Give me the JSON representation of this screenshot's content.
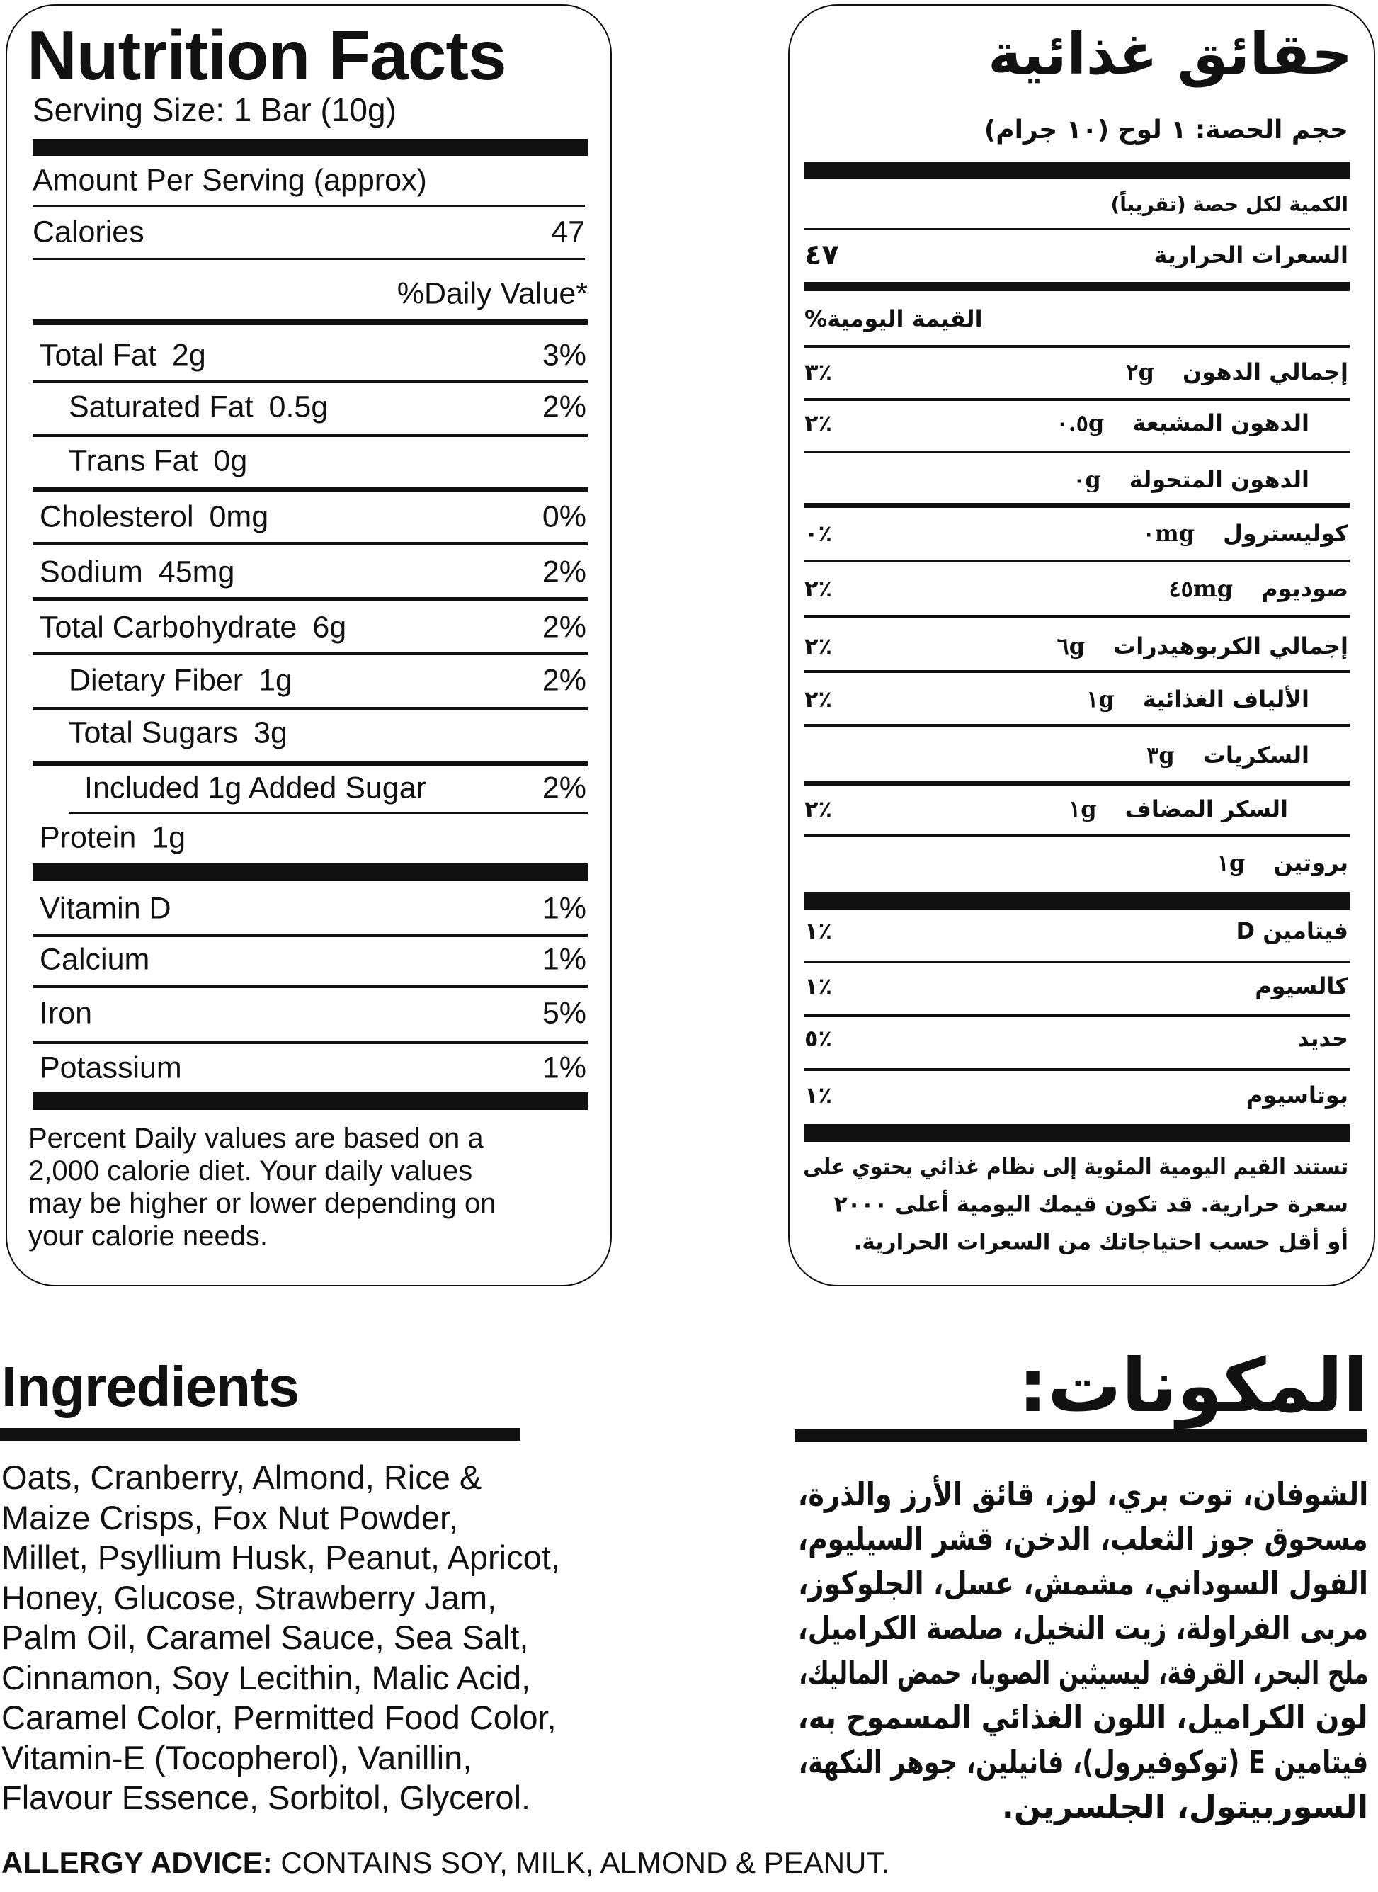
{
  "english_panel": {
    "title": "Nutrition Facts",
    "serving_size": "Serving Size: 1 Bar (10g)",
    "amount_per_serving": "Amount Per Serving (approx)",
    "calories_label": "Calories",
    "calories_value": "47",
    "daily_value_header": "%Daily Value*",
    "nutrients": [
      {
        "name": "Total Fat",
        "amount": "2g",
        "dv": "3%"
      },
      {
        "name": "Saturated Fat",
        "amount": "0.5g",
        "dv": "2%"
      },
      {
        "name": "Trans Fat",
        "amount": "0g",
        "dv": ""
      },
      {
        "name": "Cholesterol",
        "amount": "0mg",
        "dv": "0%"
      },
      {
        "name": "Sodium",
        "amount": "45mg",
        "dv": "2%"
      },
      {
        "name": "Total Carbohydrate",
        "amount": "6g",
        "dv": "2%"
      },
      {
        "name": "Dietary Fiber",
        "amount": "1g",
        "dv": "2%"
      },
      {
        "name": "Total Sugars",
        "amount": "3g",
        "dv": ""
      },
      {
        "name": "Included 1g Added Sugar",
        "amount": "",
        "dv": "2%"
      },
      {
        "name": "Protein",
        "amount": "1g",
        "dv": ""
      }
    ],
    "vitamins": [
      {
        "name": "Vitamin D",
        "dv": "1%"
      },
      {
        "name": "Calcium",
        "dv": "1%"
      },
      {
        "name": "Iron",
        "dv": "5%"
      },
      {
        "name": "Potassium",
        "dv": "1%"
      }
    ],
    "footnote": [
      "Percent Daily values are based on a",
      "2,000 calorie diet. Your daily values",
      "may be higher or lower depending on",
      "your calorie needs."
    ]
  },
  "arabic_panel": {
    "title": "حقائق غذائية",
    "serving_size": "حجم الحصة: ١ لوح (١٠ جرام)",
    "amount_per_serving": "الكمية لكل حصة (تقريباً)",
    "calories_label": "السعرات الحرارية",
    "calories_value": "٤٧",
    "daily_value_header": "القيمة اليومية%",
    "nutrients": [
      {
        "name": "إجمالي الدهون",
        "amount": "٢g",
        "dv": "٣٪"
      },
      {
        "name": "الدهون المشبعة",
        "amount": "٠.٥g",
        "dv": "٢٪"
      },
      {
        "name": "الدهون المتحولة",
        "amount": "٠g",
        "dv": ""
      },
      {
        "name": "كوليسترول",
        "amount": "٠mg",
        "dv": "٠٪"
      },
      {
        "name": "صوديوم",
        "amount": "٤٥mg",
        "dv": "٢٪"
      },
      {
        "name": "إجمالي الكربوهيدرات",
        "amount": "٦g",
        "dv": "٢٪"
      },
      {
        "name": "الألياف الغذائية",
        "amount": "١g",
        "dv": "٢٪"
      },
      {
        "name": "السكريات",
        "amount": "٣g",
        "dv": ""
      },
      {
        "name": "السكر المضاف",
        "amount": "١g",
        "dv": "٢٪"
      },
      {
        "name": "بروتين",
        "amount": "١g",
        "dv": ""
      }
    ],
    "vitamins": [
      {
        "name": "فيتامين D",
        "dv": "١٪"
      },
      {
        "name": "كالسيوم",
        "dv": "١٪"
      },
      {
        "name": "حديد",
        "dv": "٥٪"
      },
      {
        "name": "بوتاسيوم",
        "dv": "١٪"
      }
    ],
    "footnote": [
      "تستند القيم اليومية المئوية إلى نظام غذائي يحتوي على",
      "سعرة حرارية. قد تكون قيمك اليومية أعلى ٢٠٠٠",
      "أو أقل حسب احتياجاتك من السعرات الحرارية."
    ]
  },
  "ingredients_en": {
    "title": "Ingredients",
    "lines": [
      "Oats, Cranberry, Almond, Rice &",
      "Maize Crisps, Fox Nut Powder,",
      "Millet, Psyllium Husk, Peanut, Apricot,",
      "Honey, Glucose, Strawberry Jam,",
      "Palm Oil, Caramel Sauce, Sea Salt,",
      "Cinnamon, Soy Lecithin, Malic Acid,",
      "Caramel Color, Permitted Food Color,",
      "Vitamin-E (Tocopherol), Vanillin,",
      "Flavour Essence, Sorbitol, Glycerol."
    ]
  },
  "ingredients_ar": {
    "title": "المكونات:",
    "lines": [
      "الشوفان، توت بري، لوز، قائق الأرز والذرة،",
      "مسحوق جوز الثعلب، الدخن، قشر السيليوم،",
      "الفول السوداني، مشمش، عسل، الجلوكوز،",
      "مربى الفراولة، زيت النخيل، صلصة الكراميل،",
      "ملح البحر، القرفة، ليسيثين الصويا، حمض الماليك،",
      "لون الكراميل، اللون الغذائي المسموح به،",
      "فيتامين E (توكوفيرول)، فانيلين، جوهر النكهة،",
      "السوربيتول، الجلسرين."
    ]
  },
  "allergy": {
    "label": "ALLERGY ADVICE:",
    "text": " CONTAINS  SOY, MILK, ALMOND & PEANUT."
  }
}
